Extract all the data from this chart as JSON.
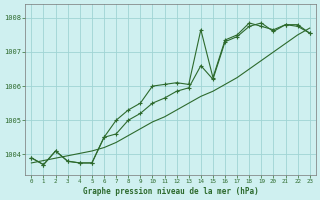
{
  "title": "Graphe pression niveau de la mer (hPa)",
  "background_color": "#cff0f0",
  "line_color": "#2d6a2d",
  "grid_color": "#a0d4d4",
  "xlim": [
    -0.5,
    23.5
  ],
  "ylim": [
    1003.4,
    1008.4
  ],
  "yticks": [
    1004,
    1005,
    1006,
    1007,
    1008
  ],
  "xticks": [
    0,
    1,
    2,
    3,
    4,
    5,
    6,
    7,
    8,
    9,
    10,
    11,
    12,
    13,
    14,
    15,
    16,
    17,
    18,
    19,
    20,
    21,
    22,
    23
  ],
  "series_linear": [
    1003.75,
    1003.82,
    1003.89,
    1003.96,
    1004.03,
    1004.1,
    1004.2,
    1004.35,
    1004.55,
    1004.75,
    1004.95,
    1005.1,
    1005.3,
    1005.5,
    1005.7,
    1005.85,
    1006.05,
    1006.25,
    1006.5,
    1006.75,
    1007.0,
    1007.25,
    1007.5,
    1007.7
  ],
  "series2": [
    1003.9,
    1003.7,
    1004.1,
    1003.8,
    1003.75,
    1003.75,
    1004.5,
    1004.6,
    1005.0,
    1005.2,
    1005.5,
    1005.65,
    1005.85,
    1005.95,
    1006.6,
    1006.2,
    1007.3,
    1007.45,
    1007.75,
    1007.85,
    1007.6,
    1007.8,
    1007.75,
    1007.55
  ],
  "series3": [
    1003.9,
    1003.7,
    1004.1,
    1003.8,
    1003.75,
    1003.75,
    1004.5,
    1005.0,
    1005.3,
    1005.5,
    1006.0,
    1006.05,
    1006.1,
    1006.05,
    1007.65,
    1006.25,
    1007.35,
    1007.5,
    1007.85,
    1007.75,
    1007.65,
    1007.8,
    1007.8,
    1007.55
  ]
}
